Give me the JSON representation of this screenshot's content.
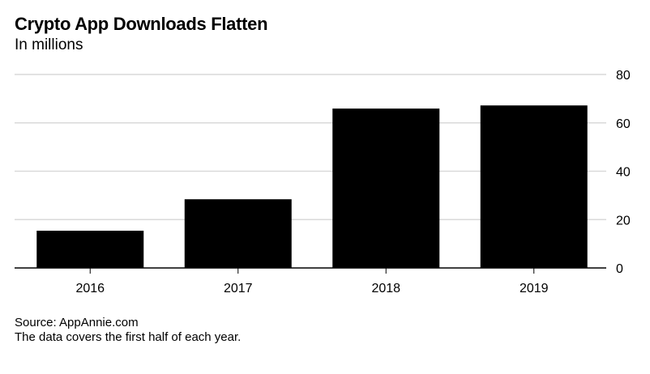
{
  "chart_data": {
    "type": "bar",
    "title": "Crypto App Downloads Flatten",
    "subtitle": "In millions",
    "categories": [
      "2016",
      "2017",
      "2018",
      "2019"
    ],
    "values": [
      15.4,
      28.4,
      65.9,
      67.2
    ],
    "xlabel": "",
    "ylabel": "",
    "ylim": [
      0,
      80
    ],
    "yticks": [
      0,
      20,
      40,
      60,
      80
    ],
    "y_axis_side": "right",
    "grid": true,
    "bar_color": "#000000",
    "grid_color": "#d9d9d9",
    "legend": null
  },
  "footer": {
    "source": "Source: AppAnnie.com",
    "note": "The data covers the first half of each year."
  }
}
